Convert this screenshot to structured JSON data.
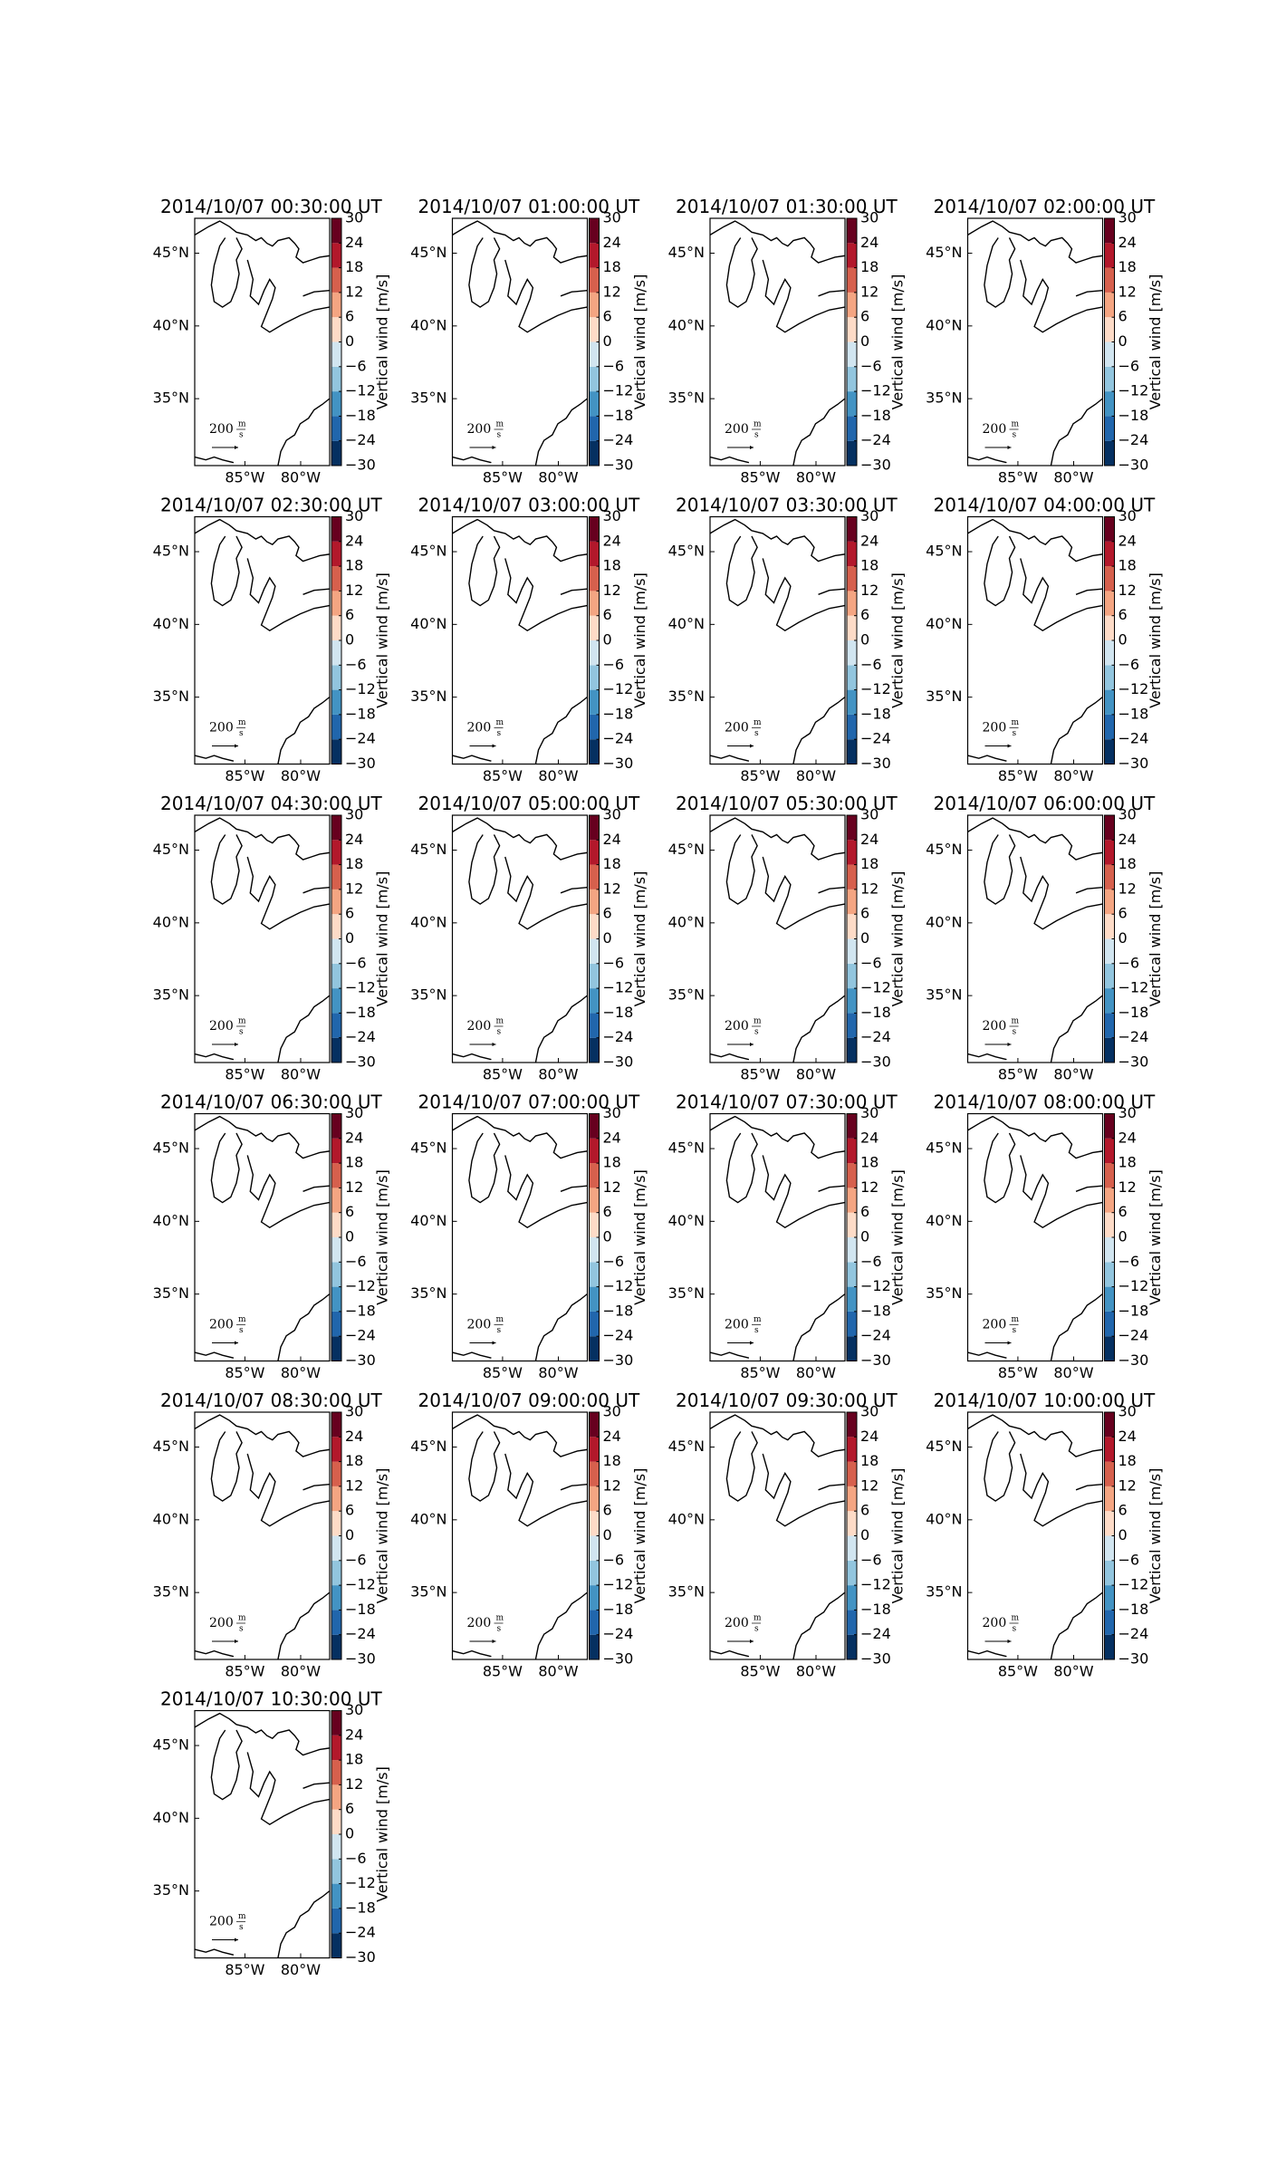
{
  "chart_data": {
    "type": "map-grid",
    "titles": [
      "2014/10/07 00:30:00 UT",
      "2014/10/07 01:00:00 UT",
      "2014/10/07 01:30:00 UT",
      "2014/10/07 02:00:00 UT",
      "2014/10/07 02:30:00 UT",
      "2014/10/07 03:00:00 UT",
      "2014/10/07 03:30:00 UT",
      "2014/10/07 04:00:00 UT",
      "2014/10/07 04:30:00 UT",
      "2014/10/07 05:00:00 UT",
      "2014/10/07 05:30:00 UT",
      "2014/10/07 06:00:00 UT",
      "2014/10/07 06:30:00 UT",
      "2014/10/07 07:00:00 UT",
      "2014/10/07 07:30:00 UT",
      "2014/10/07 08:00:00 UT",
      "2014/10/07 08:30:00 UT",
      "2014/10/07 09:00:00 UT",
      "2014/10/07 09:30:00 UT",
      "2014/10/07 10:00:00 UT",
      "2014/10/07 10:30:00 UT"
    ],
    "xlim": [
      -89.5,
      -77.4
    ],
    "xticks": [
      {
        "value": -85,
        "label": "85°W"
      },
      {
        "value": -80,
        "label": "80°W"
      }
    ],
    "ylim": [
      30.4,
      47.4
    ],
    "yticks": [
      {
        "value": 45,
        "label": "45°N"
      },
      {
        "value": 40,
        "label": "40°N"
      },
      {
        "value": 35,
        "label": "35°N"
      }
    ],
    "colorbar_label": "Vertical wind [m/s]",
    "clim": [
      -30,
      30
    ],
    "cticks": [
      {
        "value": -30,
        "label": "−30"
      },
      {
        "value": -24,
        "label": "−24"
      },
      {
        "value": -18,
        "label": "−18"
      },
      {
        "value": -12,
        "label": "−12"
      },
      {
        "value": -6,
        "label": "−6"
      },
      0,
      6,
      12,
      18,
      24,
      30
    ],
    "colors": [
      "#053061",
      "#2166ac",
      "#4393c3",
      "#92c5de",
      "#d1e5f0",
      "#fddbc7",
      "#f4a582",
      "#d6604d",
      "#b2182b",
      "#67001f"
    ],
    "quiver_key": {
      "value": 200,
      "unit_num": "m",
      "unit_den": "s"
    }
  }
}
